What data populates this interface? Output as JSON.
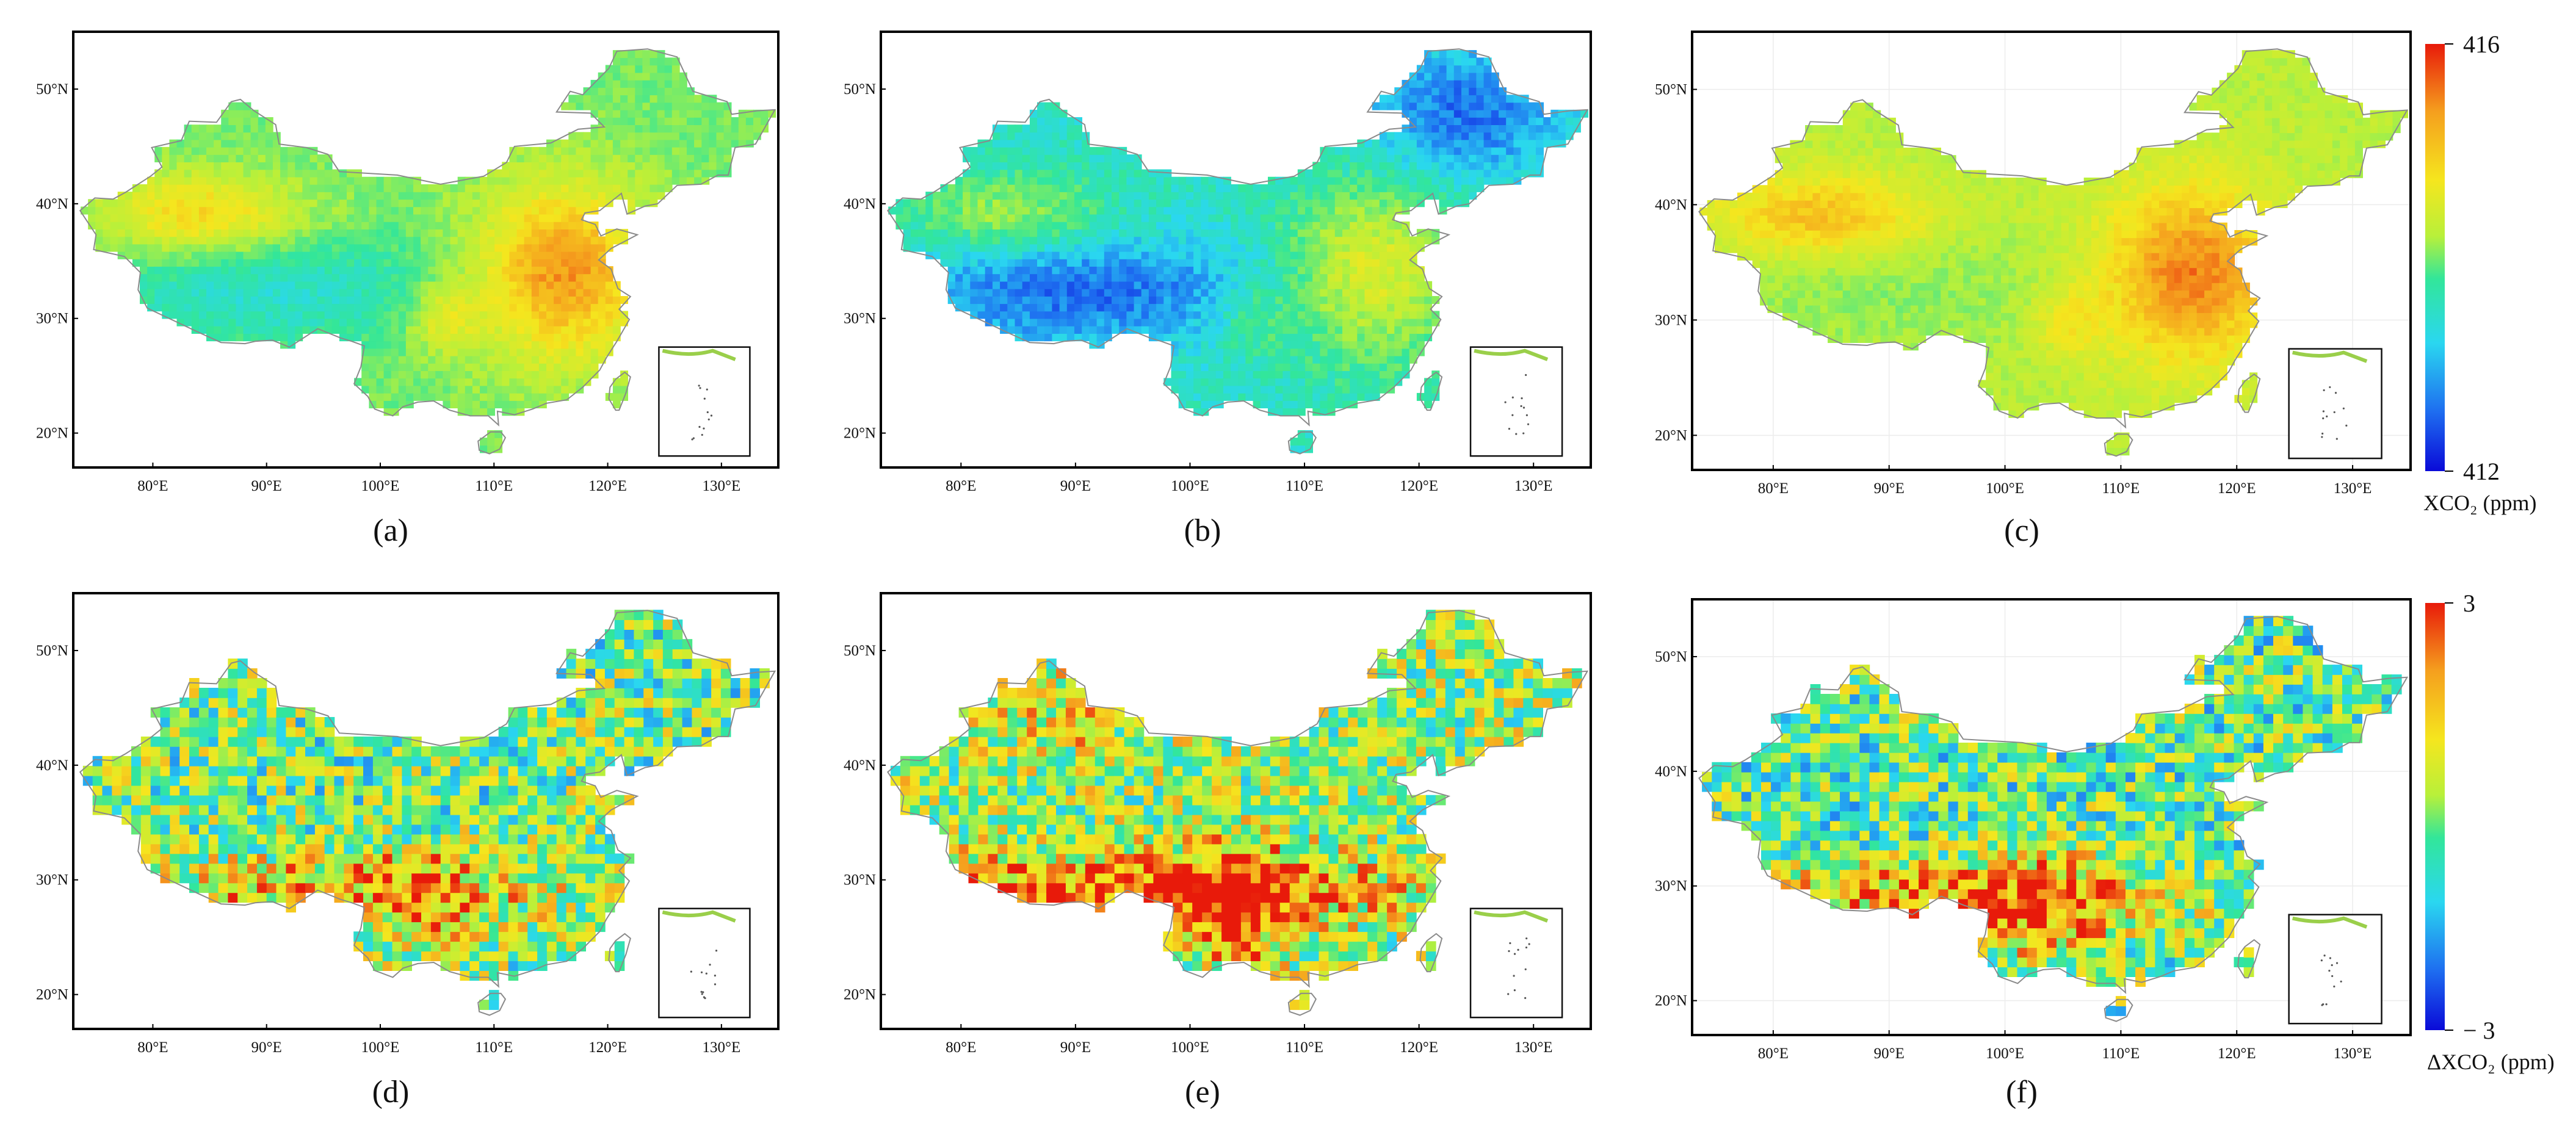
{
  "figure": {
    "colorbars": [
      {
        "title": "XCO₂ (ppm)",
        "max_label": "416",
        "min_label": "412",
        "min": 412,
        "max": 416
      },
      {
        "title": "ΔXCO₂ (ppm)",
        "max_label": "3",
        "min_label": "− 3",
        "min": -3,
        "max": 3
      }
    ],
    "colormap": [
      "#0a0ad8",
      "#1e6ef0",
      "#2ad7f0",
      "#32e69a",
      "#b8f03a",
      "#f5e61e",
      "#f5a01e",
      "#e81a0a"
    ]
  },
  "chart_data": [
    {
      "type": "heatmap",
      "panel_label": "(a)",
      "map": "China XCO₂ spatial distribution",
      "x_ticks": [
        "80°E",
        "90°E",
        "100°E",
        "110°E",
        "120°E",
        "130°E"
      ],
      "y_ticks": [
        "20°N",
        "30°N",
        "40°N",
        "50°N"
      ],
      "xlim": [
        73,
        135
      ],
      "ylim": [
        17,
        55
      ],
      "value_range": [
        412,
        416
      ]
    },
    {
      "type": "heatmap",
      "panel_label": "(b)",
      "map": "China XCO₂ spatial distribution",
      "x_ticks": [
        "80°E",
        "90°E",
        "100°E",
        "110°E",
        "120°E",
        "130°E"
      ],
      "y_ticks": [
        "20°N",
        "30°N",
        "40°N",
        "50°N"
      ],
      "xlim": [
        73,
        135
      ],
      "ylim": [
        17,
        55
      ],
      "value_range": [
        412,
        416
      ]
    },
    {
      "type": "heatmap",
      "panel_label": "(c)",
      "map": "China XCO₂ spatial distribution",
      "x_ticks": [
        "80°E",
        "90°E",
        "100°E",
        "110°E",
        "120°E",
        "130°E"
      ],
      "y_ticks": [
        "20°N",
        "30°N",
        "40°N",
        "50°N"
      ],
      "xlim": [
        73,
        135
      ],
      "ylim": [
        17,
        55
      ],
      "value_range": [
        412,
        416
      ]
    },
    {
      "type": "heatmap",
      "panel_label": "(d)",
      "map": "China ΔXCO₂ spatial distribution",
      "x_ticks": [
        "80°E",
        "90°E",
        "100°E",
        "110°E",
        "120°E",
        "130°E"
      ],
      "y_ticks": [
        "20°N",
        "30°N",
        "40°N",
        "50°N"
      ],
      "xlim": [
        73,
        135
      ],
      "ylim": [
        17,
        55
      ],
      "value_range": [
        -3,
        3
      ]
    },
    {
      "type": "heatmap",
      "panel_label": "(e)",
      "map": "China ΔXCO₂ spatial distribution",
      "x_ticks": [
        "80°E",
        "90°E",
        "100°E",
        "110°E",
        "120°E",
        "130°E"
      ],
      "y_ticks": [
        "20°N",
        "30°N",
        "40°N",
        "50°N"
      ],
      "xlim": [
        73,
        135
      ],
      "ylim": [
        17,
        55
      ],
      "value_range": [
        -3,
        3
      ]
    },
    {
      "type": "heatmap",
      "panel_label": "(f)",
      "map": "China ΔXCO₂ spatial distribution",
      "x_ticks": [
        "80°E",
        "90°E",
        "100°E",
        "110°E",
        "120°E",
        "130°E"
      ],
      "y_ticks": [
        "20°N",
        "30°N",
        "40°N",
        "50°N"
      ],
      "xlim": [
        73,
        135
      ],
      "ylim": [
        17,
        55
      ],
      "value_range": [
        -3,
        3
      ]
    }
  ]
}
